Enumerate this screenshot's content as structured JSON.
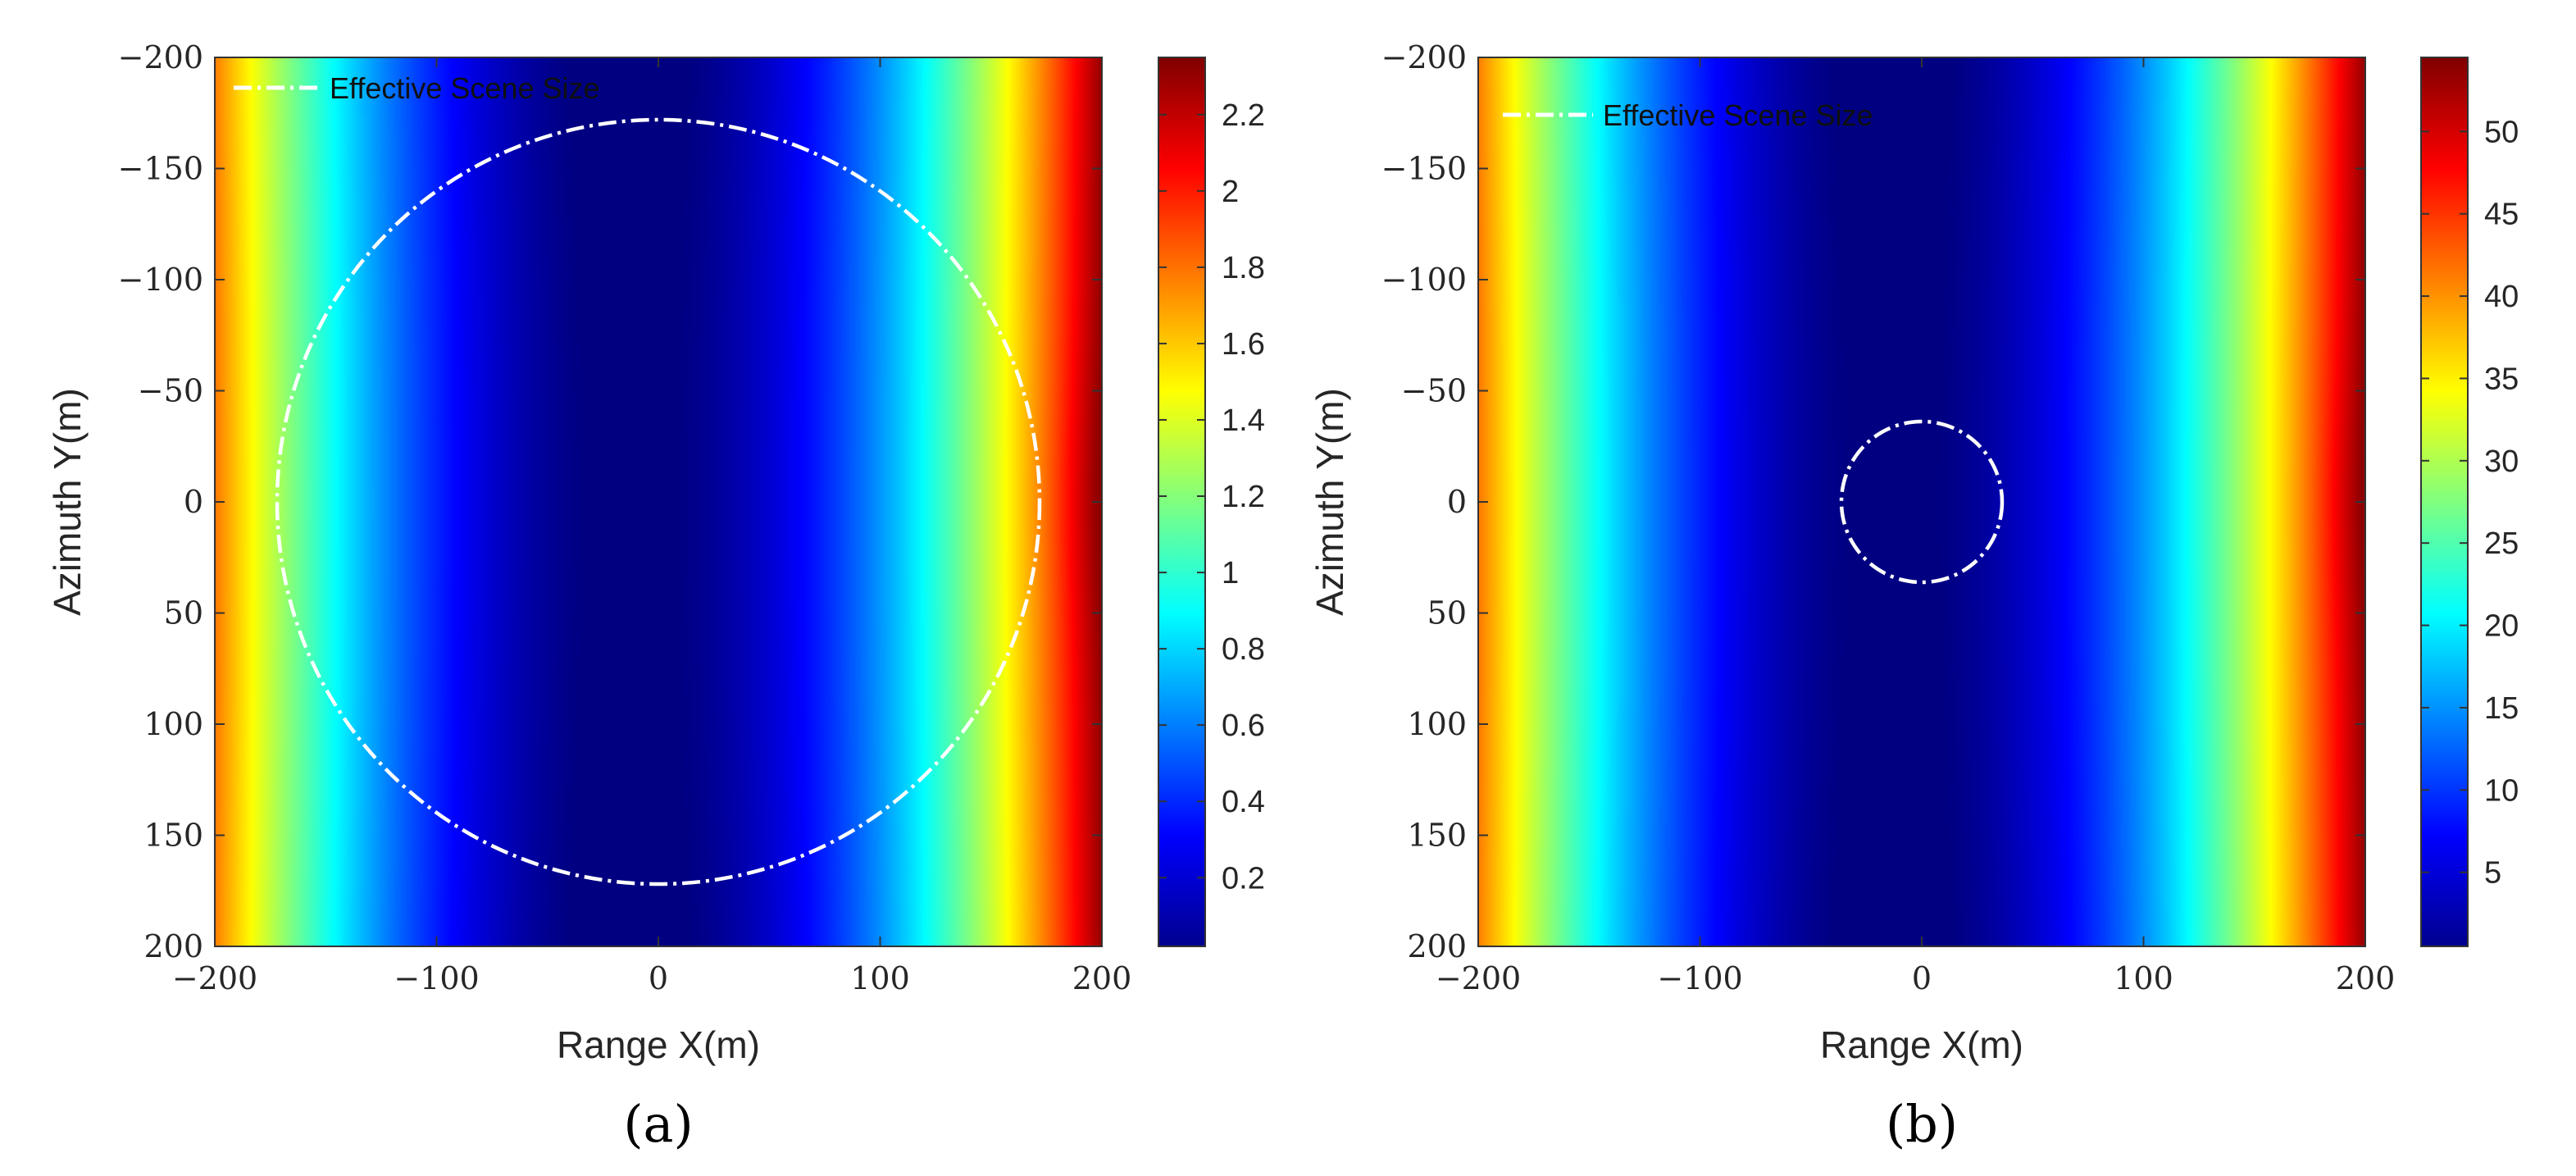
{
  "chart_data": [
    {
      "type": "heatmap",
      "panel_label": "(a)",
      "xlabel": "Range X(m)",
      "ylabel": "Azimuth Y(m)",
      "xlim": [
        -200,
        200
      ],
      "ylim": [
        -200,
        200
      ],
      "y_direction": "reversed",
      "xticks": [
        -200,
        -100,
        0,
        100,
        200
      ],
      "yticks": [
        -200,
        -150,
        -100,
        -50,
        0,
        50,
        100,
        150,
        200
      ],
      "colormap": "jet",
      "colorbar": {
        "min": 0.02,
        "max": 2.35,
        "ticks": [
          0.2,
          0.4,
          0.6,
          0.8,
          1,
          1.2,
          1.4,
          1.6,
          1.8,
          2,
          2.2
        ]
      },
      "legend": {
        "label": "Effective Scene Size",
        "location": "top-left",
        "style": "white dash-dot"
      },
      "circle": {
        "center": [
          0,
          0
        ],
        "radius": 172
      }
    },
    {
      "type": "heatmap",
      "panel_label": "(b)",
      "xlabel": "Range X(m)",
      "ylabel": "Azimuth Y(m)",
      "xlim": [
        -200,
        200
      ],
      "ylim": [
        -200,
        200
      ],
      "y_direction": "reversed",
      "xticks": [
        -200,
        -100,
        0,
        100,
        200
      ],
      "yticks": [
        -200,
        -150,
        -100,
        -50,
        0,
        50,
        100,
        150,
        200
      ],
      "colormap": "jet",
      "colorbar": {
        "min": 0.5,
        "max": 54.5,
        "ticks": [
          5,
          10,
          15,
          20,
          25,
          30,
          35,
          40,
          45,
          50
        ]
      },
      "legend": {
        "label": "Effective Scene Size",
        "location": "top-left",
        "style": "white dash-dot"
      },
      "circle": {
        "center": [
          0,
          0
        ],
        "radius": 36
      }
    }
  ]
}
